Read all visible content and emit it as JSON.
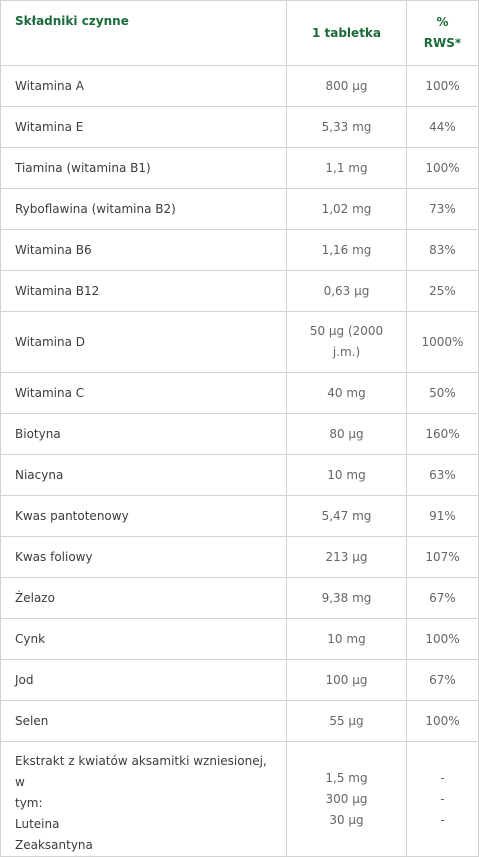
{
  "table": {
    "headers": {
      "ingredient": "Składniki czynne",
      "per_tablet": "1 tabletka",
      "rws_line1": "%",
      "rws_line2": "RWS*"
    },
    "rows": [
      {
        "name": "Witamina A",
        "amount": "800 µg",
        "rws": "100%"
      },
      {
        "name": "Witamina E",
        "amount": "5,33 mg",
        "rws": "44%"
      },
      {
        "name": "Tiamina (witamina B1)",
        "amount": "1,1 mg",
        "rws": "100%"
      },
      {
        "name": "Ryboflawina (witamina B2)",
        "amount": "1,02 mg",
        "rws": "73%"
      },
      {
        "name": "Witamina B6",
        "amount": "1,16 mg",
        "rws": "83%"
      },
      {
        "name": "Witamina B12",
        "amount": "0,63 µg",
        "rws": "25%"
      },
      {
        "name": "Witamina D",
        "amount": "50 µg (2000 j.m.)",
        "rws": "1000%"
      },
      {
        "name": "Witamina C",
        "amount": "40 mg",
        "rws": "50%"
      },
      {
        "name": "Biotyna",
        "amount": "80 µg",
        "rws": "160%"
      },
      {
        "name": "Niacyna",
        "amount": "10 mg",
        "rws": "63%"
      },
      {
        "name": "Kwas pantotenowy",
        "amount": "5,47 mg",
        "rws": "91%"
      },
      {
        "name": "Kwas foliowy",
        "amount": "213 µg",
        "rws": "107%"
      },
      {
        "name": "Żelazo",
        "amount": "9,38 mg",
        "rws": "67%"
      },
      {
        "name": "Cynk",
        "amount": "10 mg",
        "rws": "100%"
      },
      {
        "name": "Jod",
        "amount": "100 µg",
        "rws": "67%"
      },
      {
        "name": "Selen",
        "amount": "55 µg",
        "rws": "100%"
      }
    ],
    "extract": {
      "name_line1": "Ekstrakt z kwiatów aksamitki wzniesionej, w",
      "name_line2": "tym:",
      "name_line3": "Luteina",
      "name_line4": "Zeaksantyna",
      "amounts": [
        "1,5 mg",
        "300 µg",
        "30 µg"
      ],
      "rws": [
        "-",
        "-",
        "-"
      ]
    }
  }
}
